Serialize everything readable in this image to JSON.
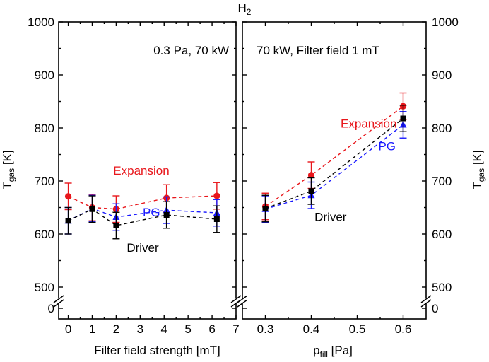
{
  "chart_data": [
    {
      "type": "scatter",
      "panel": "left",
      "title": "H₂",
      "annotation": "0.3 Pa, 70 kW",
      "xlabel": "Filter field strength [mT]",
      "ylabel": "T_gas [K]",
      "xlim": [
        -0.4,
        7
      ],
      "xticks": [
        0,
        1,
        2,
        3,
        4,
        5,
        6,
        7
      ],
      "ylim": [
        450,
        1000
      ],
      "yticks": [
        500,
        600,
        700,
        800,
        900,
        1000
      ],
      "y_axis_break": true,
      "y_break_label": "0",
      "series": [
        {
          "name": "Expansion",
          "color": "#e8161b",
          "marker": "circle",
          "label_offset": [
            30,
            -30
          ],
          "label_anchor": "middle",
          "x": [
            0,
            1,
            2,
            4.1,
            6.2
          ],
          "y": [
            671,
            650,
            647,
            668,
            672
          ],
          "err": [
            25,
            25,
            25,
            25,
            25
          ]
        },
        {
          "name": "PG",
          "color": "#1a1aff",
          "marker": "triangle",
          "label_offset": [
            0.8,
            0
          ],
          "label_anchor": "start",
          "x": [
            0,
            1,
            2,
            4.1,
            6.2
          ],
          "y": [
            625,
            648,
            632,
            645,
            640
          ],
          "err": [
            25,
            25,
            25,
            25,
            25
          ]
        },
        {
          "name": "Driver",
          "color": "#000000",
          "marker": "square",
          "label_offset": [
            2,
            -50
          ],
          "label_anchor": "middle",
          "x": [
            0,
            1,
            2,
            4.1,
            6.2
          ],
          "y": [
            625,
            647,
            616,
            636,
            628
          ],
          "err": [
            25,
            25,
            25,
            25,
            25
          ]
        }
      ]
    },
    {
      "type": "scatter",
      "panel": "right",
      "annotation": "70 kW, Filter field 1 mT",
      "xlabel_main": "p",
      "xlabel_sub": "fill",
      "xlabel_unit": " [Pa]",
      "ylabel": "T_gas [K]",
      "xlim": [
        0.25,
        0.65
      ],
      "xticks": [
        0.3,
        0.4,
        0.5,
        0.6
      ],
      "xtick_labels": [
        "0.3",
        "0.4",
        "0.5",
        "0.6"
      ],
      "ylim": [
        450,
        1000
      ],
      "yticks": [
        500,
        600,
        700,
        800,
        900,
        1000
      ],
      "y_axis_break": true,
      "y_break_label": "0",
      "series": [
        {
          "name": "Expansion",
          "color": "#e8161b",
          "marker": "circle",
          "label_offset": [
            0.525,
            809
          ],
          "label_anchor": "middle",
          "x": [
            0.3,
            0.4,
            0.6
          ],
          "y": [
            652,
            711,
            841
          ],
          "err": [
            25,
            25,
            25
          ]
        },
        {
          "name": "PG",
          "color": "#1a1aff",
          "marker": "triangle",
          "label_offset": [
            0.565,
            766
          ],
          "label_anchor": "middle",
          "x": [
            0.3,
            0.4,
            0.6
          ],
          "y": [
            647,
            673,
            806
          ],
          "err": [
            25,
            25,
            25
          ]
        },
        {
          "name": "Driver",
          "color": "#000000",
          "marker": "square",
          "label_offset": [
            0.442,
            633
          ],
          "label_anchor": "middle",
          "x": [
            0.3,
            0.4,
            0.6
          ],
          "y": [
            648,
            681,
            818
          ],
          "err": [
            25,
            25,
            25
          ]
        }
      ]
    }
  ]
}
